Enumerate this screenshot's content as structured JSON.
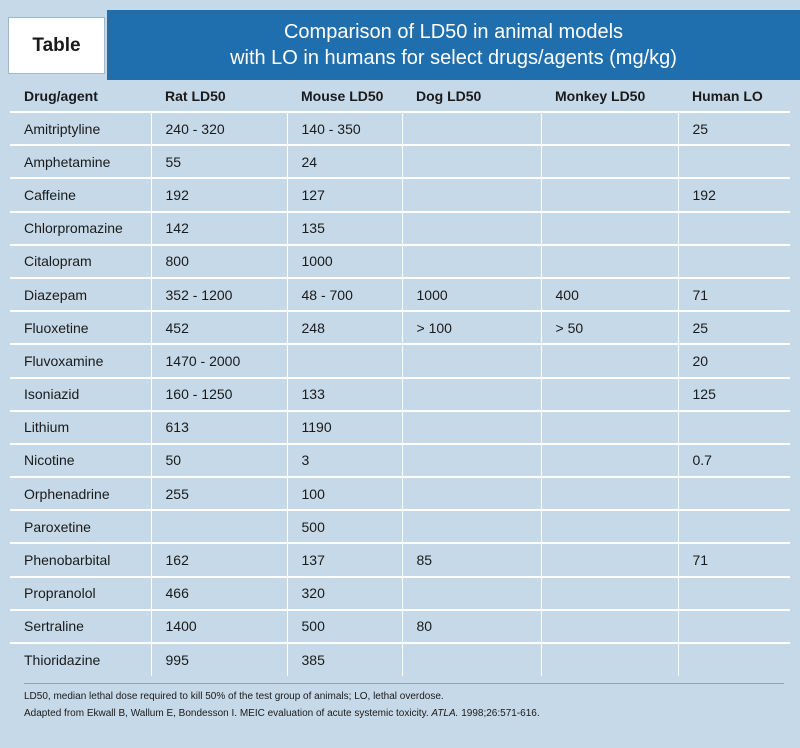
{
  "tag_label": "Table",
  "title": {
    "line1": "Comparison of LD50 in animal models",
    "line2": "with LO in humans for select drugs/agents (mg/kg)"
  },
  "table": {
    "headers": [
      "Drug/agent",
      "Rat LD50",
      "Mouse LD50",
      "Dog LD50",
      "Monkey LD50",
      "Human LO"
    ],
    "rows": [
      [
        "Amitriptyline",
        "240 - 320",
        "140 - 350",
        "",
        "",
        "25"
      ],
      [
        "Amphetamine",
        "55",
        "24",
        "",
        "",
        ""
      ],
      [
        "Caffeine",
        "192",
        "127",
        "",
        "",
        "192"
      ],
      [
        "Chlorpromazine",
        "142",
        "135",
        "",
        "",
        ""
      ],
      [
        "Citalopram",
        "800",
        "1000",
        "",
        "",
        ""
      ],
      [
        "Diazepam",
        "352 - 1200",
        "48 - 700",
        "1000",
        "400",
        "71"
      ],
      [
        "Fluoxetine",
        "452",
        "248",
        "> 100",
        "> 50",
        "25"
      ],
      [
        "Fluvoxamine",
        "1470 - 2000",
        "",
        "",
        "",
        "20"
      ],
      [
        "Isoniazid",
        "160 - 1250",
        "133",
        "",
        "",
        "125"
      ],
      [
        "Lithium",
        "613",
        "1190",
        "",
        "",
        ""
      ],
      [
        "Nicotine",
        "50",
        "3",
        "",
        "",
        "0.7"
      ],
      [
        "Orphenadrine",
        "255",
        "100",
        "",
        "",
        ""
      ],
      [
        "Paroxetine",
        "",
        "500",
        "",
        "",
        ""
      ],
      [
        "Phenobarbital",
        "162",
        "137",
        "85",
        "",
        "71"
      ],
      [
        "Propranolol",
        "466",
        "320",
        "",
        "",
        ""
      ],
      [
        "Sertraline",
        "1400",
        "500",
        "80",
        "",
        ""
      ],
      [
        "Thioridazine",
        "995",
        "385",
        "",
        "",
        ""
      ]
    ]
  },
  "footnote": {
    "line1": "LD50, median lethal dose required to kill 50% of the test group of animals; LO, lethal overdose.",
    "line2_prefix": "Adapted from Ekwall B, Wallum E, Bondesson I. MEIC evaluation of acute systemic toxicity. ",
    "line2_journal": "ATLA.",
    "line2_suffix": " 1998;26:571-616."
  }
}
